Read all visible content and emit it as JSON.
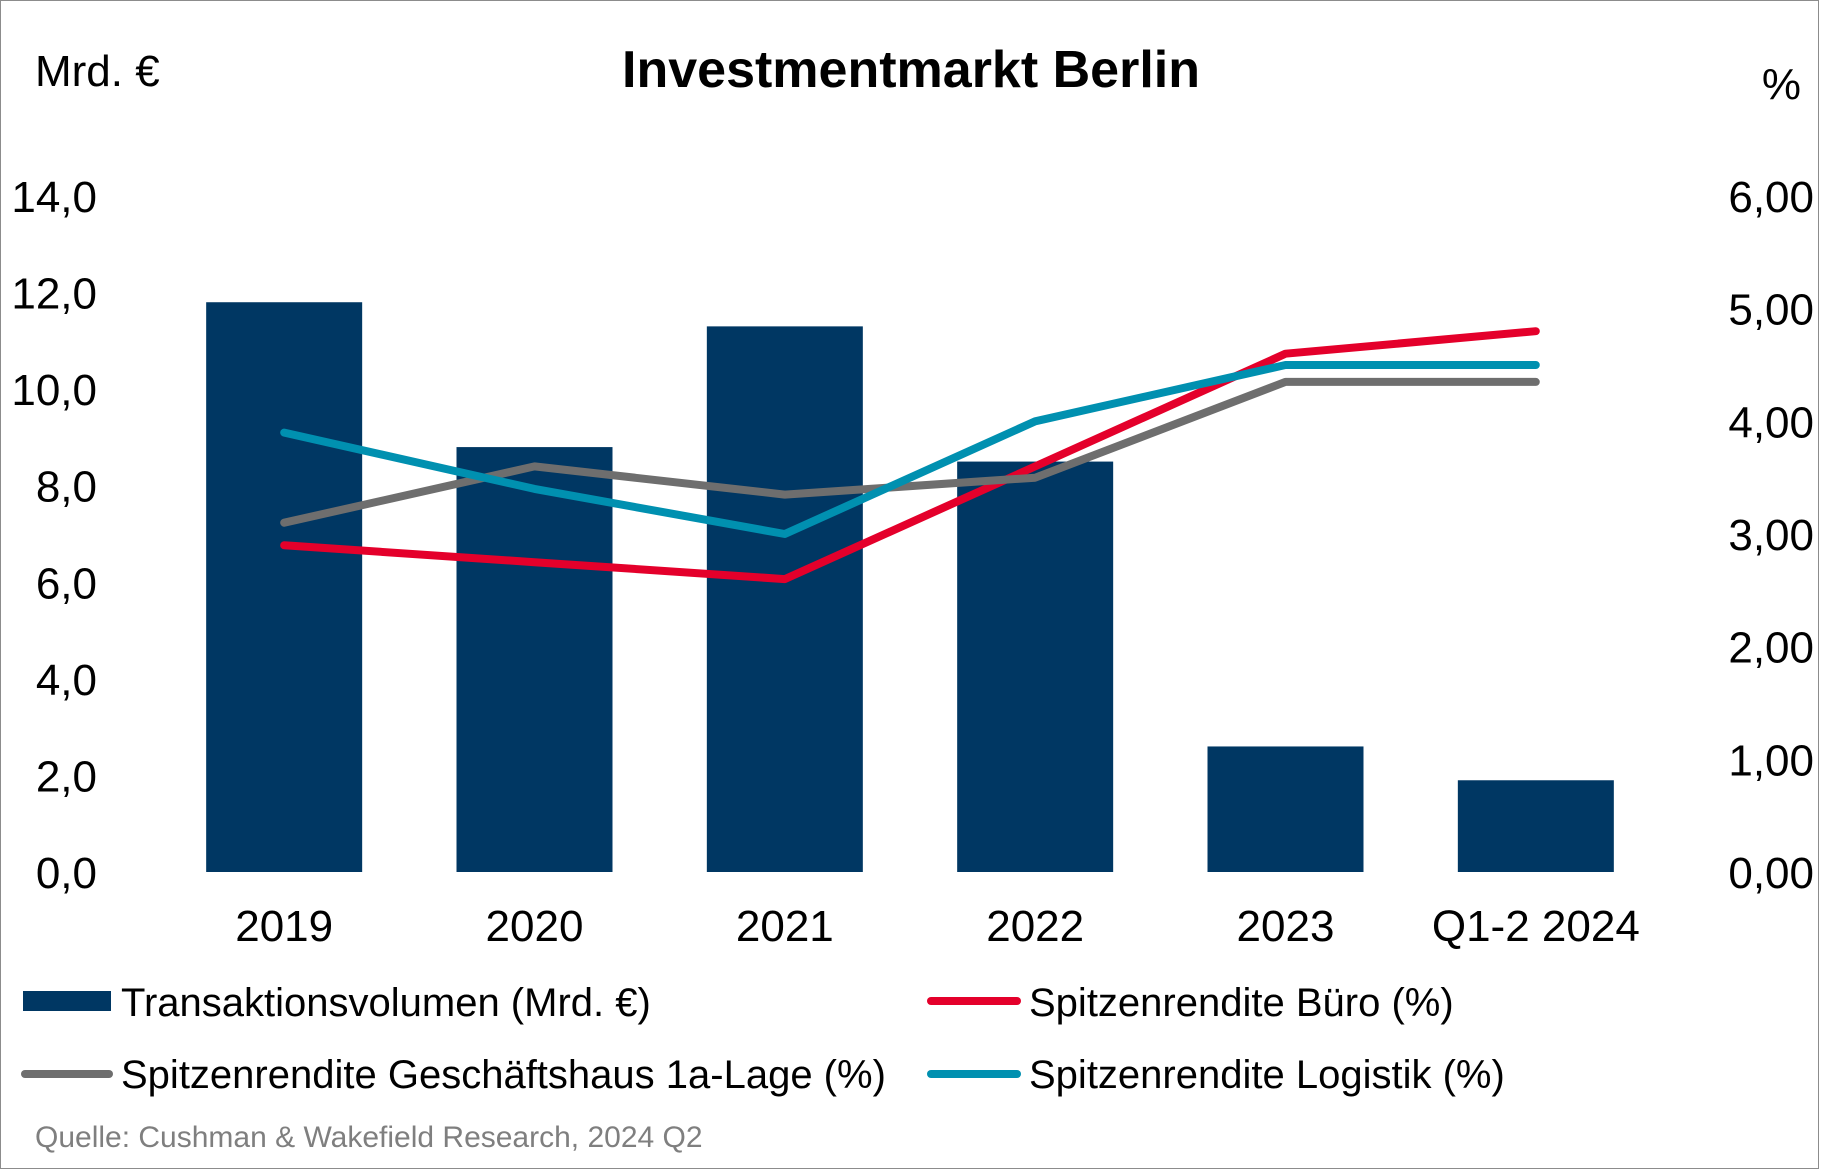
{
  "chart_data": {
    "type": "bar",
    "title": "Investmentmarkt Berlin",
    "left_unit": "Mrd. €",
    "right_unit": "%",
    "source": "Quelle: Cushman & Wakefield Research, 2024 Q2",
    "categories": [
      "2019",
      "2020",
      "2021",
      "2022",
      "2023",
      "Q1-2 2024"
    ],
    "y_left": {
      "range": [
        0,
        14
      ],
      "ticks": [
        "0,0",
        "2,0",
        "4,0",
        "6,0",
        "8,0",
        "10,0",
        "12,0",
        "14,0"
      ]
    },
    "y_right": {
      "range": [
        0,
        6
      ],
      "ticks": [
        "0,00",
        "1,00",
        "2,00",
        "3,00",
        "4,00",
        "5,00",
        "6,00"
      ]
    },
    "grid": false,
    "legend_position": "bottom",
    "bar_series": {
      "name": "Transaktionsvolumen (Mrd. €)",
      "axis": "left",
      "color": "#003763",
      "values": [
        11.8,
        8.8,
        11.3,
        8.5,
        2.6,
        1.9
      ]
    },
    "line_series": [
      {
        "name": "Spitzenrendite Büro (%)",
        "axis": "right",
        "color": "#e4002b",
        "values": [
          2.9,
          2.75,
          2.6,
          3.6,
          4.6,
          4.8
        ]
      },
      {
        "name": "Spitzenrendite Geschäftshaus 1a-Lage (%)",
        "axis": "right",
        "color": "#6e6e6e",
        "values": [
          3.1,
          3.6,
          3.35,
          3.5,
          4.35,
          4.35
        ]
      },
      {
        "name": "Spitzenrendite Logistik (%)",
        "axis": "right",
        "color": "#0090b0",
        "values": [
          3.9,
          3.4,
          3.0,
          4.0,
          4.5,
          4.5
        ]
      }
    ]
  }
}
